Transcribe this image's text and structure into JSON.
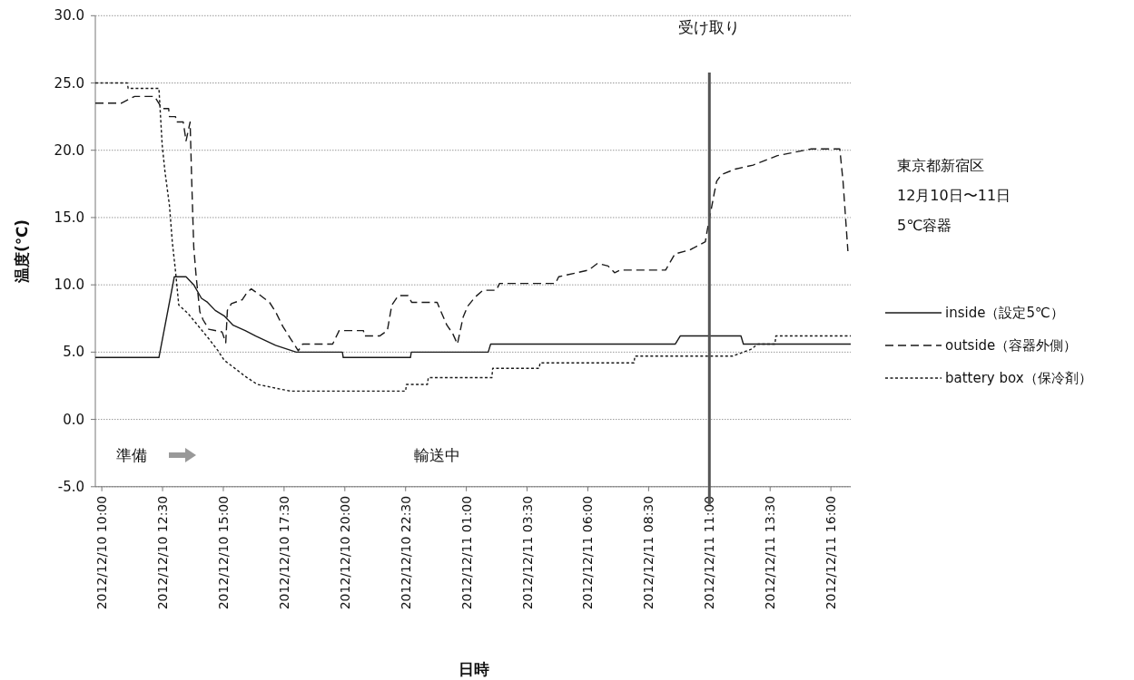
{
  "chart_data": {
    "type": "line",
    "xlabel": "日時",
    "ylabel": "温度(℃)",
    "xlim": [
      "2012-12-10T09:44",
      "2012-12-11T16:49"
    ],
    "xticks": [
      {
        "value": "2012-12-10T10:00",
        "label": "2012/12/10 10:00"
      },
      {
        "value": "2012-12-10T12:30",
        "label": "2012/12/10 12:30"
      },
      {
        "value": "2012-12-10T15:00",
        "label": "2012/12/10 15:00"
      },
      {
        "value": "2012-12-10T17:30",
        "label": "2012/12/10 17:30"
      },
      {
        "value": "2012-12-10T20:00",
        "label": "2012/12/10 20:00"
      },
      {
        "value": "2012-12-10T22:30",
        "label": "2012/12/10 22:30"
      },
      {
        "value": "2012-12-11T01:00",
        "label": "2012/12/11 01:00"
      },
      {
        "value": "2012-12-11T03:30",
        "label": "2012/12/11 03:30"
      },
      {
        "value": "2012-12-11T06:00",
        "label": "2012/12/11 06:00"
      },
      {
        "value": "2012-12-11T08:30",
        "label": "2012/12/11 08:30"
      },
      {
        "value": "2012-12-11T11:00",
        "label": "2012/12/11 11:00"
      },
      {
        "value": "2012-12-11T13:30",
        "label": "2012/12/11 13:30"
      },
      {
        "value": "2012-12-11T16:00",
        "label": "2012/12/11 16:00"
      }
    ],
    "ylim": [
      -5,
      30
    ],
    "yticks": [
      {
        "value": -5,
        "label": "-5.0"
      },
      {
        "value": 0,
        "label": "0.0"
      },
      {
        "value": 5,
        "label": "5.0"
      },
      {
        "value": 10,
        "label": "10.0"
      },
      {
        "value": 15,
        "label": "15.0"
      },
      {
        "value": 20,
        "label": "20.0"
      },
      {
        "value": 25,
        "label": "25.0"
      },
      {
        "value": 30,
        "label": "30.0"
      }
    ],
    "grid": "y",
    "legend": "right",
    "series": [
      {
        "name": "inside（設定5℃）",
        "color": "#1a1a1a",
        "line_style": "solid",
        "x": [
          "2012-12-10T09:44",
          "2012-12-10T12:21",
          "2012-12-10T12:59",
          "2012-12-10T13:28",
          "2012-12-10T13:47",
          "2012-12-10T14:06",
          "2012-12-10T14:21",
          "2012-12-10T14:40",
          "2012-12-10T15:02",
          "2012-12-10T15:24",
          "2012-12-10T15:54",
          "2012-12-10T16:20",
          "2012-12-10T17:09",
          "2012-12-10T18:00",
          "2012-12-10T19:54",
          "2012-12-10T19:56",
          "2012-12-10T22:42",
          "2012-12-10T22:44",
          "2012-12-11T01:54",
          "2012-12-11T02:00",
          "2012-12-11T09:36",
          "2012-12-11T09:48",
          "2012-12-11T12:18",
          "2012-12-11T12:24",
          "2012-12-11T16:49"
        ],
        "values": [
          4.6,
          4.6,
          10.6,
          10.6,
          10.0,
          9.0,
          8.7,
          8.1,
          7.7,
          7.0,
          6.6,
          6.2,
          5.5,
          5.0,
          5.0,
          4.6,
          4.6,
          5.0,
          5.0,
          5.6,
          5.6,
          6.2,
          6.2,
          5.6,
          5.6
        ]
      },
      {
        "name": "outside（容器外側）",
        "color": "#1a1a1a",
        "line_style": "dashed",
        "x": [
          "2012-12-10T09:44",
          "2012-12-10T10:48",
          "2012-12-10T11:21",
          "2012-12-10T12:10",
          "2012-12-10T12:29",
          "2012-12-10T12:45",
          "2012-12-10T12:47",
          "2012-12-10T13:02",
          "2012-12-10T13:04",
          "2012-12-10T13:21",
          "2012-12-10T13:28",
          "2012-12-10T13:38",
          "2012-12-10T13:42",
          "2012-12-10T13:47",
          "2012-12-10T13:53",
          "2012-12-10T14:02",
          "2012-12-10T14:10",
          "2012-12-10T14:24",
          "2012-12-10T14:57",
          "2012-12-10T15:06",
          "2012-12-10T15:10",
          "2012-12-10T15:20",
          "2012-12-10T15:47",
          "2012-12-10T15:58",
          "2012-12-10T16:09",
          "2012-12-10T16:28",
          "2012-12-10T16:54",
          "2012-12-10T17:09",
          "2012-12-10T17:27",
          "2012-12-10T17:46",
          "2012-12-10T18:05",
          "2012-12-10T18:16",
          "2012-12-10T19:30",
          "2012-12-10T19:46",
          "2012-12-10T20:46",
          "2012-12-10T20:48",
          "2012-12-10T21:26",
          "2012-12-10T21:45",
          "2012-12-10T21:56",
          "2012-12-10T22:12",
          "2012-12-10T22:36",
          "2012-12-10T22:45",
          "2012-12-10T23:48",
          "2012-12-10T23:56",
          "2012-12-11T00:12",
          "2012-12-11T00:26",
          "2012-12-11T00:38",
          "2012-12-11T00:52",
          "2012-12-11T01:03",
          "2012-12-11T01:22",
          "2012-12-11T01:41",
          "2012-12-11T02:14",
          "2012-12-11T02:22",
          "2012-12-11T04:40",
          "2012-12-11T04:48",
          "2012-12-11T06:02",
          "2012-12-11T06:24",
          "2012-12-11T06:50",
          "2012-12-11T07:06",
          "2012-12-11T07:20",
          "2012-12-11T09:12",
          "2012-12-11T09:35",
          "2012-12-11T10:12",
          "2012-12-11T10:50",
          "2012-12-11T10:55",
          "2012-12-11T11:12",
          "2012-12-11T11:18",
          "2012-12-11T11:30",
          "2012-12-11T12:04",
          "2012-12-11T12:48",
          "2012-12-11T13:48",
          "2012-12-11T15:12",
          "2012-12-11T16:22",
          "2012-12-11T16:30",
          "2012-12-11T16:42"
        ],
        "values": [
          23.5,
          23.5,
          24.0,
          24.0,
          23.1,
          23.1,
          22.5,
          22.5,
          22.1,
          22.1,
          20.7,
          22.1,
          17.7,
          12.8,
          10.6,
          8.0,
          7.4,
          6.7,
          6.5,
          5.7,
          8.1,
          8.6,
          8.9,
          9.4,
          9.7,
          9.3,
          8.7,
          8.0,
          6.9,
          6.0,
          5.1,
          5.6,
          5.6,
          6.6,
          6.6,
          6.2,
          6.2,
          6.6,
          8.5,
          9.2,
          9.2,
          8.7,
          8.7,
          8.1,
          7.0,
          6.4,
          5.6,
          7.6,
          8.4,
          9.1,
          9.6,
          9.6,
          10.1,
          10.1,
          10.6,
          11.1,
          11.6,
          11.4,
          10.9,
          11.1,
          11.1,
          12.3,
          12.6,
          13.2,
          14.1,
          16.8,
          17.7,
          18.2,
          18.6,
          18.9,
          19.6,
          20.1,
          20.1,
          17.7,
          12.5
        ]
      },
      {
        "name": "battery box（保冷剤）",
        "color": "#1a1a1a",
        "line_style": "dotted",
        "x": [
          "2012-12-10T09:44",
          "2012-12-10T11:03",
          "2012-12-10T11:05",
          "2012-12-10T12:21",
          "2012-12-10T12:29",
          "2012-12-10T12:36",
          "2012-12-10T12:47",
          "2012-12-10T12:54",
          "2012-12-10T13:02",
          "2012-12-10T13:10",
          "2012-12-10T13:32",
          "2012-12-10T13:54",
          "2012-12-10T14:24",
          "2012-12-10T14:47",
          "2012-12-10T15:02",
          "2012-12-10T15:24",
          "2012-12-10T15:54",
          "2012-12-10T16:24",
          "2012-12-10T17:46",
          "2012-12-10T22:30",
          "2012-12-10T22:32",
          "2012-12-10T23:24",
          "2012-12-10T23:26",
          "2012-12-11T02:03",
          "2012-12-11T02:05",
          "2012-12-11T04:00",
          "2012-12-11T04:02",
          "2012-12-11T07:54",
          "2012-12-11T07:56",
          "2012-12-11T11:57",
          "2012-12-11T12:42",
          "2012-12-11T13:00",
          "2012-12-11T13:42",
          "2012-12-11T13:44",
          "2012-12-11T16:49"
        ],
        "values": [
          25.0,
          25.0,
          24.6,
          24.6,
          20.4,
          18.4,
          15.9,
          13.2,
          11.0,
          8.5,
          7.9,
          7.1,
          6.0,
          5.1,
          4.4,
          3.9,
          3.2,
          2.6,
          2.1,
          2.1,
          2.6,
          2.6,
          3.1,
          3.1,
          3.8,
          3.8,
          4.2,
          4.2,
          4.7,
          4.7,
          5.2,
          5.6,
          5.6,
          6.2,
          6.2
        ]
      }
    ],
    "ref_lines": [
      {
        "axis": "x",
        "value": "2012-12-11T11:00",
        "label": "受け取り",
        "color": "#555555"
      }
    ],
    "annotations": [
      "準備",
      "輸送中",
      "東京都新宿区",
      "12月10日〜11日",
      "5℃容器"
    ]
  }
}
